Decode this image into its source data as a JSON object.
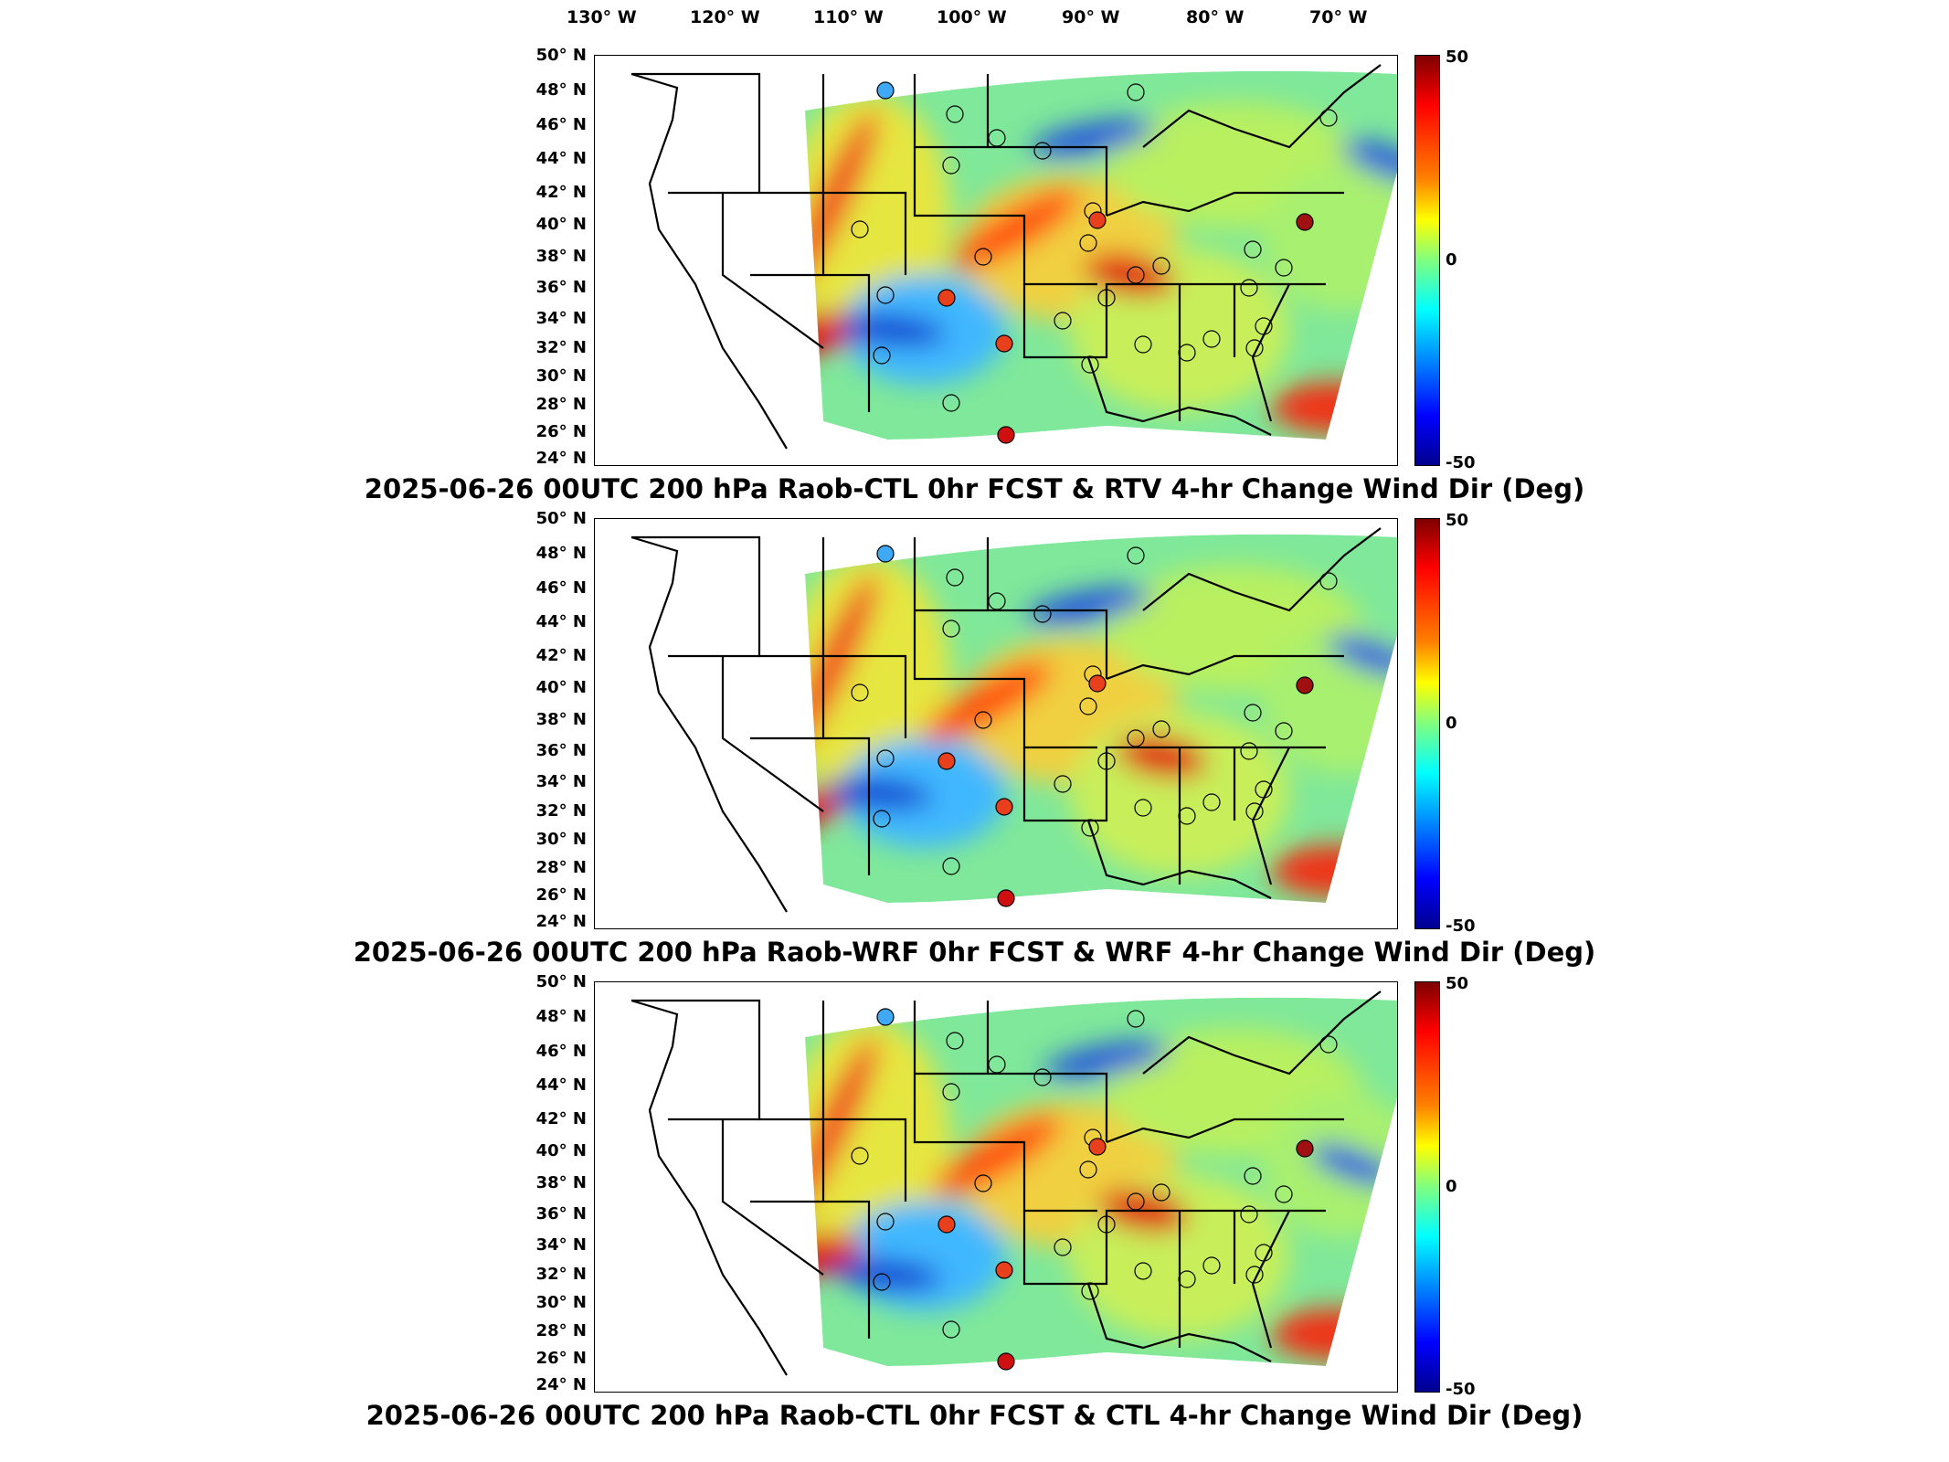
{
  "longitude_labels": [
    "130° W",
    "120° W",
    "110° W",
    "100° W",
    "90° W",
    "80° W",
    "70° W"
  ],
  "latitude_labels": [
    "50° N",
    "48° N",
    "46° N",
    "44° N",
    "42° N",
    "40° N",
    "38° N",
    "36° N",
    "34° N",
    "32° N",
    "30° N",
    "28° N",
    "26° N",
    "24° N"
  ],
  "colorbar": {
    "max_label": "50",
    "mid_label": "0",
    "min_label": "-50",
    "colormap": [
      "#7f0000",
      "#ff0000",
      "#ff8000",
      "#ffff00",
      "#80ff80",
      "#00ffff",
      "#0080ff",
      "#0000ff",
      "#00008f"
    ]
  },
  "panels": [
    {
      "caption": "2025-06-26 00UTC 200 hPa Raob-CTL 0hr FCST & RTV 4-hr Change Wind Dir (Deg)"
    },
    {
      "caption": "2025-06-26 00UTC 200 hPa Raob-WRF 0hr FCST & WRF 4-hr Change Wind Dir (Deg)"
    },
    {
      "caption": "2025-06-26 00UTC 200 hPa Raob-CTL 0hr FCST & CTL 4-hr Change Wind Dir (Deg)"
    }
  ]
}
